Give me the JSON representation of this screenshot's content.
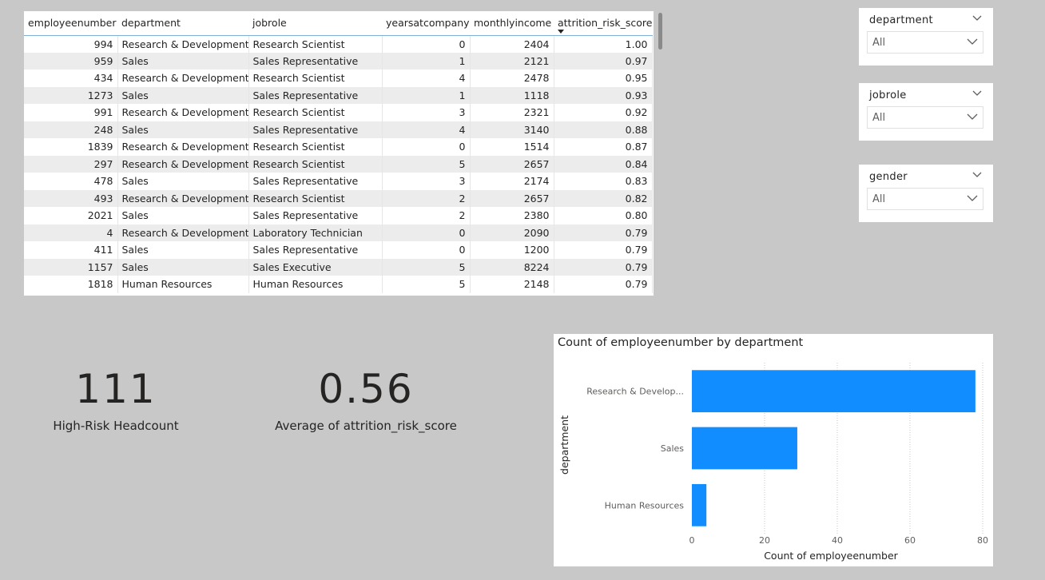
{
  "table": {
    "columns": [
      {
        "label": "employeenumber",
        "align": "right"
      },
      {
        "label": "department",
        "align": "left"
      },
      {
        "label": "jobrole",
        "align": "left"
      },
      {
        "label": "yearsatcompany",
        "align": "right"
      },
      {
        "label": "monthlyincome",
        "align": "right"
      },
      {
        "label": "attrition_risk_score",
        "align": "right",
        "sorted": "desc"
      }
    ],
    "rows": [
      [
        "994",
        "Research & Development",
        "Research Scientist",
        "0",
        "2404",
        "1.00"
      ],
      [
        "959",
        "Sales",
        "Sales Representative",
        "1",
        "2121",
        "0.97"
      ],
      [
        "434",
        "Research & Development",
        "Research Scientist",
        "4",
        "2478",
        "0.95"
      ],
      [
        "1273",
        "Sales",
        "Sales Representative",
        "1",
        "1118",
        "0.93"
      ],
      [
        "991",
        "Research & Development",
        "Research Scientist",
        "3",
        "2321",
        "0.92"
      ],
      [
        "248",
        "Sales",
        "Sales Representative",
        "4",
        "3140",
        "0.88"
      ],
      [
        "1839",
        "Research & Development",
        "Research Scientist",
        "0",
        "1514",
        "0.87"
      ],
      [
        "297",
        "Research & Development",
        "Research Scientist",
        "5",
        "2657",
        "0.84"
      ],
      [
        "478",
        "Sales",
        "Sales Representative",
        "3",
        "2174",
        "0.83"
      ],
      [
        "493",
        "Research & Development",
        "Research Scientist",
        "2",
        "2657",
        "0.82"
      ],
      [
        "2021",
        "Sales",
        "Sales Representative",
        "2",
        "2380",
        "0.80"
      ],
      [
        "4",
        "Research & Development",
        "Laboratory Technician",
        "0",
        "2090",
        "0.79"
      ],
      [
        "411",
        "Sales",
        "Sales Representative",
        "0",
        "1200",
        "0.79"
      ],
      [
        "1157",
        "Sales",
        "Sales Executive",
        "5",
        "8224",
        "0.79"
      ],
      [
        "1818",
        "Human Resources",
        "Human Resources",
        "5",
        "2148",
        "0.79"
      ]
    ]
  },
  "slicers": [
    {
      "title": "department",
      "value": "All"
    },
    {
      "title": "jobrole",
      "value": "All"
    },
    {
      "title": "gender",
      "value": "All"
    }
  ],
  "cards": {
    "high_risk": {
      "value": "111",
      "label": "High-Risk Headcount"
    },
    "avg_score": {
      "value": "0.56",
      "label": "Average of attrition_risk_score"
    }
  },
  "colors": {
    "bar": "#118dff",
    "gridline": "#c8c6c4"
  },
  "chart_data": {
    "type": "bar",
    "orientation": "horizontal",
    "title": "Count of employeenumber by department",
    "categories": [
      "Research & Develop...",
      "Sales",
      "Human Resources"
    ],
    "values": [
      78,
      29,
      4
    ],
    "xlabel": "Count of employeenumber",
    "ylabel": "department",
    "xlim": [
      0,
      80
    ],
    "xticks": [
      0,
      20,
      40,
      60,
      80
    ],
    "grid": true,
    "legend": "none"
  }
}
